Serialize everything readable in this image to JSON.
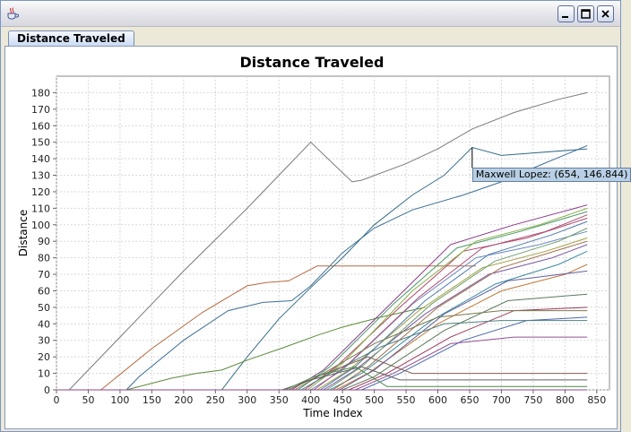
{
  "window": {
    "app_icon": "java-cup-icon"
  },
  "tabs": [
    {
      "label": "Distance Traveled",
      "selected": true
    }
  ],
  "chart_data": {
    "type": "line",
    "title": "Distance Traveled",
    "xlabel": "Time Index",
    "ylabel": "Distance",
    "xlim": [
      0,
      870
    ],
    "ylim": [
      0,
      190
    ],
    "xticks": [
      0,
      50,
      100,
      150,
      200,
      250,
      300,
      350,
      400,
      450,
      500,
      550,
      600,
      650,
      700,
      750,
      800,
      850
    ],
    "yticks": [
      0,
      10,
      20,
      30,
      40,
      50,
      60,
      70,
      80,
      90,
      100,
      110,
      120,
      130,
      140,
      150,
      160,
      170,
      180
    ],
    "grid": true,
    "legend": "none",
    "highlighted_point": {
      "series": "Maxwell Lopez",
      "x": 654,
      "y": 146.844,
      "label": "Maxwell Lopez: (654, 146.844)"
    },
    "series": [
      {
        "color": "#7a7a7a",
        "points": [
          [
            0,
            0
          ],
          [
            20,
            0
          ],
          [
            50,
            12
          ],
          [
            100,
            32
          ],
          [
            150,
            52
          ],
          [
            200,
            72
          ],
          [
            250,
            91
          ],
          [
            300,
            110
          ],
          [
            350,
            130
          ],
          [
            400,
            150
          ],
          [
            465,
            126
          ],
          [
            480,
            127
          ],
          [
            550,
            137
          ],
          [
            600,
            146
          ],
          [
            654,
            158
          ],
          [
            720,
            168
          ],
          [
            790,
            176
          ],
          [
            835,
            180
          ]
        ]
      },
      {
        "color": "#3c6e96",
        "points": [
          [
            0,
            0
          ],
          [
            110,
            0
          ],
          [
            130,
            8
          ],
          [
            200,
            30
          ],
          [
            270,
            48
          ],
          [
            325,
            53
          ],
          [
            370,
            54
          ],
          [
            400,
            63
          ],
          [
            450,
            83
          ],
          [
            500,
            98
          ],
          [
            560,
            109
          ],
          [
            640,
            118
          ],
          [
            700,
            126
          ],
          [
            760,
            136
          ],
          [
            835,
            148
          ]
        ]
      },
      {
        "color": "#b86a42",
        "points": [
          [
            0,
            0
          ],
          [
            70,
            0
          ],
          [
            150,
            25
          ],
          [
            230,
            47
          ],
          [
            300,
            63
          ],
          [
            330,
            65
          ],
          [
            365,
            66
          ],
          [
            410,
            75
          ],
          [
            660,
            75
          ]
        ]
      },
      {
        "color": "#356e86",
        "points": [
          [
            0,
            0
          ],
          [
            260,
            0
          ],
          [
            300,
            20
          ],
          [
            350,
            43
          ],
          [
            400,
            62
          ],
          [
            450,
            80
          ],
          [
            500,
            100
          ],
          [
            560,
            118
          ],
          [
            610,
            130
          ],
          [
            654,
            146.844
          ],
          [
            700,
            142
          ],
          [
            835,
            146
          ]
        ]
      },
      {
        "color": "#5a8a3a",
        "points": [
          [
            0,
            0
          ],
          [
            110,
            0
          ],
          [
            140,
            3
          ],
          [
            180,
            7
          ],
          [
            220,
            10
          ],
          [
            260,
            12
          ],
          [
            300,
            18
          ],
          [
            360,
            26
          ],
          [
            410,
            33
          ],
          [
            450,
            38
          ],
          [
            510,
            44
          ],
          [
            580,
            50
          ]
        ]
      },
      {
        "color": "#8a3a8a",
        "points": [
          [
            0,
            0
          ],
          [
            370,
            0
          ],
          [
            420,
            12
          ],
          [
            520,
            50
          ],
          [
            620,
            88
          ],
          [
            720,
            100
          ],
          [
            835,
            112
          ]
        ]
      },
      {
        "color": "#4a9a6a",
        "points": [
          [
            0,
            0
          ],
          [
            380,
            0
          ],
          [
            430,
            14
          ],
          [
            530,
            52
          ],
          [
            630,
            86
          ],
          [
            730,
            96
          ],
          [
            835,
            108
          ]
        ]
      },
      {
        "color": "#b04a6a",
        "points": [
          [
            0,
            0
          ],
          [
            390,
            0
          ],
          [
            440,
            14
          ],
          [
            540,
            50
          ],
          [
            640,
            84
          ],
          [
            740,
            92
          ],
          [
            835,
            104
          ]
        ]
      },
      {
        "color": "#6a8ac0",
        "points": [
          [
            0,
            0
          ],
          [
            400,
            0
          ],
          [
            450,
            12
          ],
          [
            560,
            52
          ],
          [
            660,
            80
          ],
          [
            760,
            88
          ],
          [
            835,
            96
          ]
        ]
      },
      {
        "color": "#a0a040",
        "points": [
          [
            0,
            0
          ],
          [
            410,
            0
          ],
          [
            460,
            12
          ],
          [
            570,
            48
          ],
          [
            670,
            74
          ],
          [
            770,
            84
          ],
          [
            835,
            92
          ]
        ]
      },
      {
        "color": "#7a5aa0",
        "points": [
          [
            0,
            0
          ],
          [
            420,
            0
          ],
          [
            470,
            12
          ],
          [
            580,
            46
          ],
          [
            680,
            70
          ],
          [
            780,
            80
          ],
          [
            835,
            88
          ]
        ]
      },
      {
        "color": "#3a8aa0",
        "points": [
          [
            0,
            0
          ],
          [
            430,
            0
          ],
          [
            480,
            10
          ],
          [
            590,
            42
          ],
          [
            690,
            64
          ],
          [
            790,
            76
          ],
          [
            835,
            84
          ]
        ]
      },
      {
        "color": "#c07a3a",
        "points": [
          [
            0,
            0
          ],
          [
            440,
            0
          ],
          [
            490,
            10
          ],
          [
            600,
            40
          ],
          [
            700,
            60
          ],
          [
            800,
            70
          ],
          [
            835,
            76
          ]
        ]
      },
      {
        "color": "#5a7a5a",
        "points": [
          [
            0,
            0
          ],
          [
            450,
            0
          ],
          [
            500,
            8
          ],
          [
            610,
            36
          ],
          [
            710,
            54
          ],
          [
            835,
            58
          ]
        ]
      },
      {
        "color": "#9a3a5a",
        "points": [
          [
            0,
            0
          ],
          [
            460,
            0
          ],
          [
            520,
            10
          ],
          [
            620,
            32
          ],
          [
            720,
            48
          ],
          [
            835,
            50
          ]
        ]
      },
      {
        "color": "#4a6ab0",
        "points": [
          [
            0,
            0
          ],
          [
            480,
            0
          ],
          [
            540,
            10
          ],
          [
            640,
            30
          ],
          [
            740,
            42
          ],
          [
            835,
            44
          ]
        ]
      },
      {
        "color": "#8ab04a",
        "points": [
          [
            0,
            0
          ],
          [
            395,
            0
          ],
          [
            450,
            16
          ],
          [
            560,
            60
          ],
          [
            660,
            90
          ],
          [
            760,
            100
          ],
          [
            835,
            110
          ]
        ]
      },
      {
        "color": "#b0507a",
        "points": [
          [
            0,
            0
          ],
          [
            405,
            0
          ],
          [
            460,
            16
          ],
          [
            570,
            56
          ],
          [
            670,
            86
          ],
          [
            770,
            96
          ],
          [
            835,
            106
          ]
        ]
      },
      {
        "color": "#507ab0",
        "points": [
          [
            0,
            0
          ],
          [
            415,
            0
          ],
          [
            470,
            14
          ],
          [
            580,
            54
          ],
          [
            680,
            82
          ],
          [
            780,
            94
          ],
          [
            835,
            102
          ]
        ]
      },
      {
        "color": "#70a070",
        "points": [
          [
            0,
            0
          ],
          [
            425,
            0
          ],
          [
            480,
            14
          ],
          [
            590,
            52
          ],
          [
            690,
            78
          ],
          [
            790,
            90
          ],
          [
            835,
            98
          ]
        ]
      },
      {
        "color": "#a07050",
        "points": [
          [
            0,
            0
          ],
          [
            435,
            0
          ],
          [
            490,
            14
          ],
          [
            600,
            50
          ],
          [
            700,
            74
          ],
          [
            800,
            86
          ],
          [
            835,
            90
          ]
        ]
      },
      {
        "color": "#6060a0",
        "points": [
          [
            0,
            0
          ],
          [
            445,
            0
          ],
          [
            500,
            12
          ],
          [
            610,
            46
          ],
          [
            710,
            66
          ],
          [
            835,
            72
          ]
        ]
      },
      {
        "color": "#905090",
        "points": [
          [
            0,
            0
          ],
          [
            470,
            0
          ],
          [
            530,
            10
          ],
          [
            620,
            28
          ],
          [
            720,
            32
          ],
          [
            835,
            32
          ]
        ]
      },
      {
        "color": "#7a7a50",
        "points": [
          [
            0,
            0
          ],
          [
            375,
            0
          ],
          [
            420,
            10
          ],
          [
            500,
            28
          ],
          [
            600,
            44
          ],
          [
            700,
            48
          ],
          [
            835,
            48
          ]
        ]
      },
      {
        "color": "#508080",
        "points": [
          [
            0,
            0
          ],
          [
            385,
            0
          ],
          [
            430,
            10
          ],
          [
            510,
            26
          ],
          [
            610,
            40
          ],
          [
            700,
            42
          ],
          [
            835,
            42
          ]
        ]
      },
      {
        "color": "#806050",
        "points": [
          [
            0,
            0
          ],
          [
            365,
            0
          ],
          [
            410,
            8
          ],
          [
            490,
            20
          ],
          [
            560,
            10
          ],
          [
            835,
            10
          ]
        ]
      },
      {
        "color": "#606060",
        "points": [
          [
            0,
            0
          ],
          [
            355,
            0
          ],
          [
            400,
            6
          ],
          [
            480,
            14
          ],
          [
            540,
            6
          ],
          [
            835,
            6
          ]
        ]
      },
      {
        "color": "#4a8a4a",
        "points": [
          [
            0,
            0
          ],
          [
            360,
            0
          ],
          [
            405,
            8
          ],
          [
            470,
            14
          ],
          [
            520,
            2
          ],
          [
            835,
            2
          ]
        ]
      },
      {
        "color": "#8a4a8a",
        "points": [
          [
            0,
            0
          ],
          [
            835,
            0
          ]
        ]
      }
    ]
  }
}
